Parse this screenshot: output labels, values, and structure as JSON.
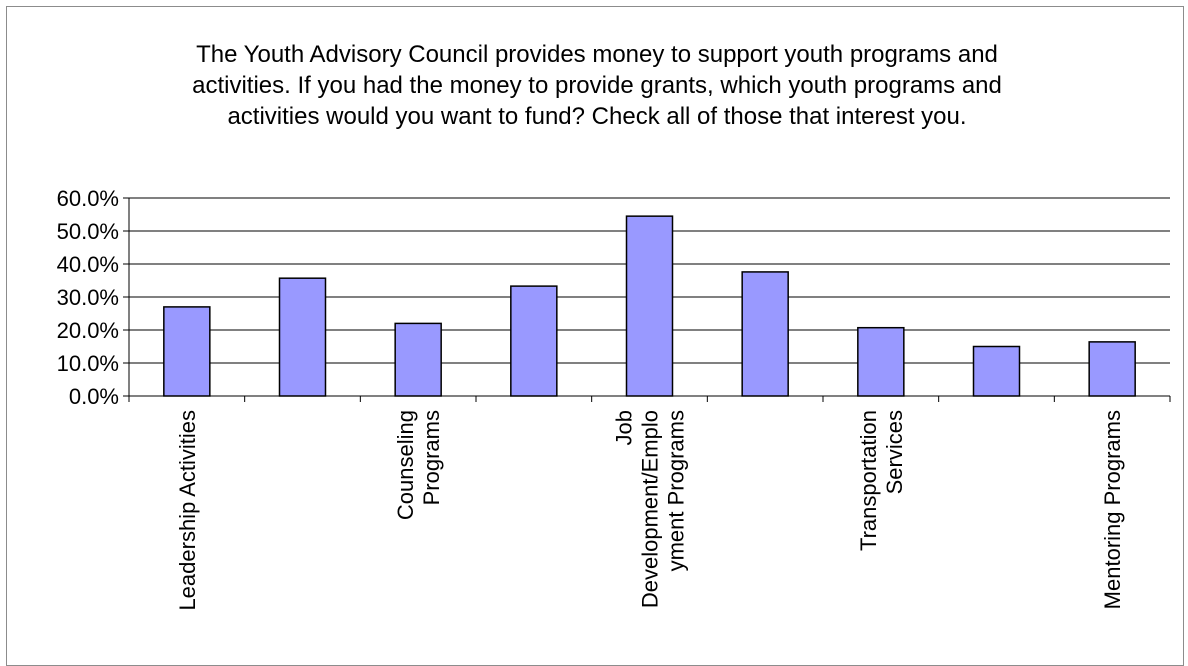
{
  "chart_data": {
    "type": "bar",
    "title": "The Youth Advisory Council provides money to support youth programs and activities. If you had the money to provide grants, which youth programs and activities would you want to fund? Check all of those that interest you.",
    "xlabel": "",
    "ylabel": "",
    "ylim": [
      0,
      60
    ],
    "yticks": [
      "0.0%",
      "10.0%",
      "20.0%",
      "30.0%",
      "40.0%",
      "50.0%",
      "60.0%"
    ],
    "categories": [
      [
        "Leadership Activities"
      ],
      [],
      [
        "Counseling",
        "Programs"
      ],
      [],
      [
        "Job",
        "Development/Emplo",
        "yment Programs"
      ],
      [],
      [
        "Transportation",
        "Services"
      ],
      [],
      [
        "Mentoring Programs"
      ]
    ],
    "values": [
      27.0,
      35.7,
      22.0,
      33.3,
      54.5,
      37.6,
      20.7,
      15.0,
      16.4
    ],
    "grid": true,
    "legend": "none",
    "colors": {
      "bar_fill": "#9999ff",
      "bar_stroke": "#000000",
      "grid": "#000000",
      "axis": "#000000"
    }
  }
}
